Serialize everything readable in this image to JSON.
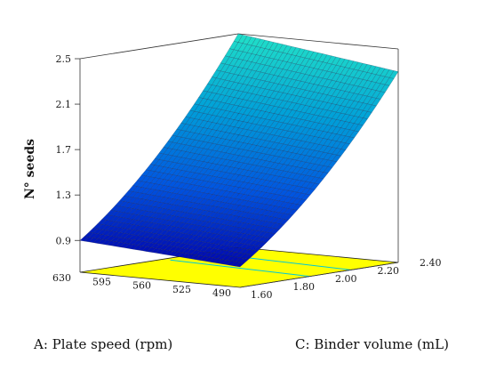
{
  "chart_data": {
    "type": "surface3d",
    "title": "",
    "zlabel": "N° seeds",
    "xlabel": "A: Plate speed (rpm)",
    "ylabel": "C: Binder volume (mL)",
    "z_ticks": [
      "0.9",
      "1.3",
      "1.7",
      "2.1",
      "2.5"
    ],
    "x_ticks": [
      "630",
      "595",
      "560",
      "525",
      "490"
    ],
    "y_ticks": [
      "1.60",
      "1.80",
      "2.00",
      "2.20",
      "2.40"
    ],
    "x_range": [
      490,
      630
    ],
    "y_range": [
      1.6,
      2.4
    ],
    "z_range": [
      0.9,
      2.5
    ],
    "surface": {
      "description_points": [
        {
          "plate_speed": 630,
          "binder_volume": 1.6,
          "seeds": 0.9
        },
        {
          "plate_speed": 490,
          "binder_volume": 1.6,
          "seeds": 0.8
        },
        {
          "plate_speed": 630,
          "binder_volume": 2.4,
          "seeds": 2.5
        },
        {
          "plate_speed": 490,
          "binder_volume": 2.4,
          "seeds": 2.3
        }
      ],
      "grid_n": 36
    },
    "floor_color": "#ffff00",
    "floor_line_color": "#00c8d8",
    "colormap": [
      "#0000aa",
      "#0055e0",
      "#00a0d8",
      "#20e0c8"
    ]
  }
}
